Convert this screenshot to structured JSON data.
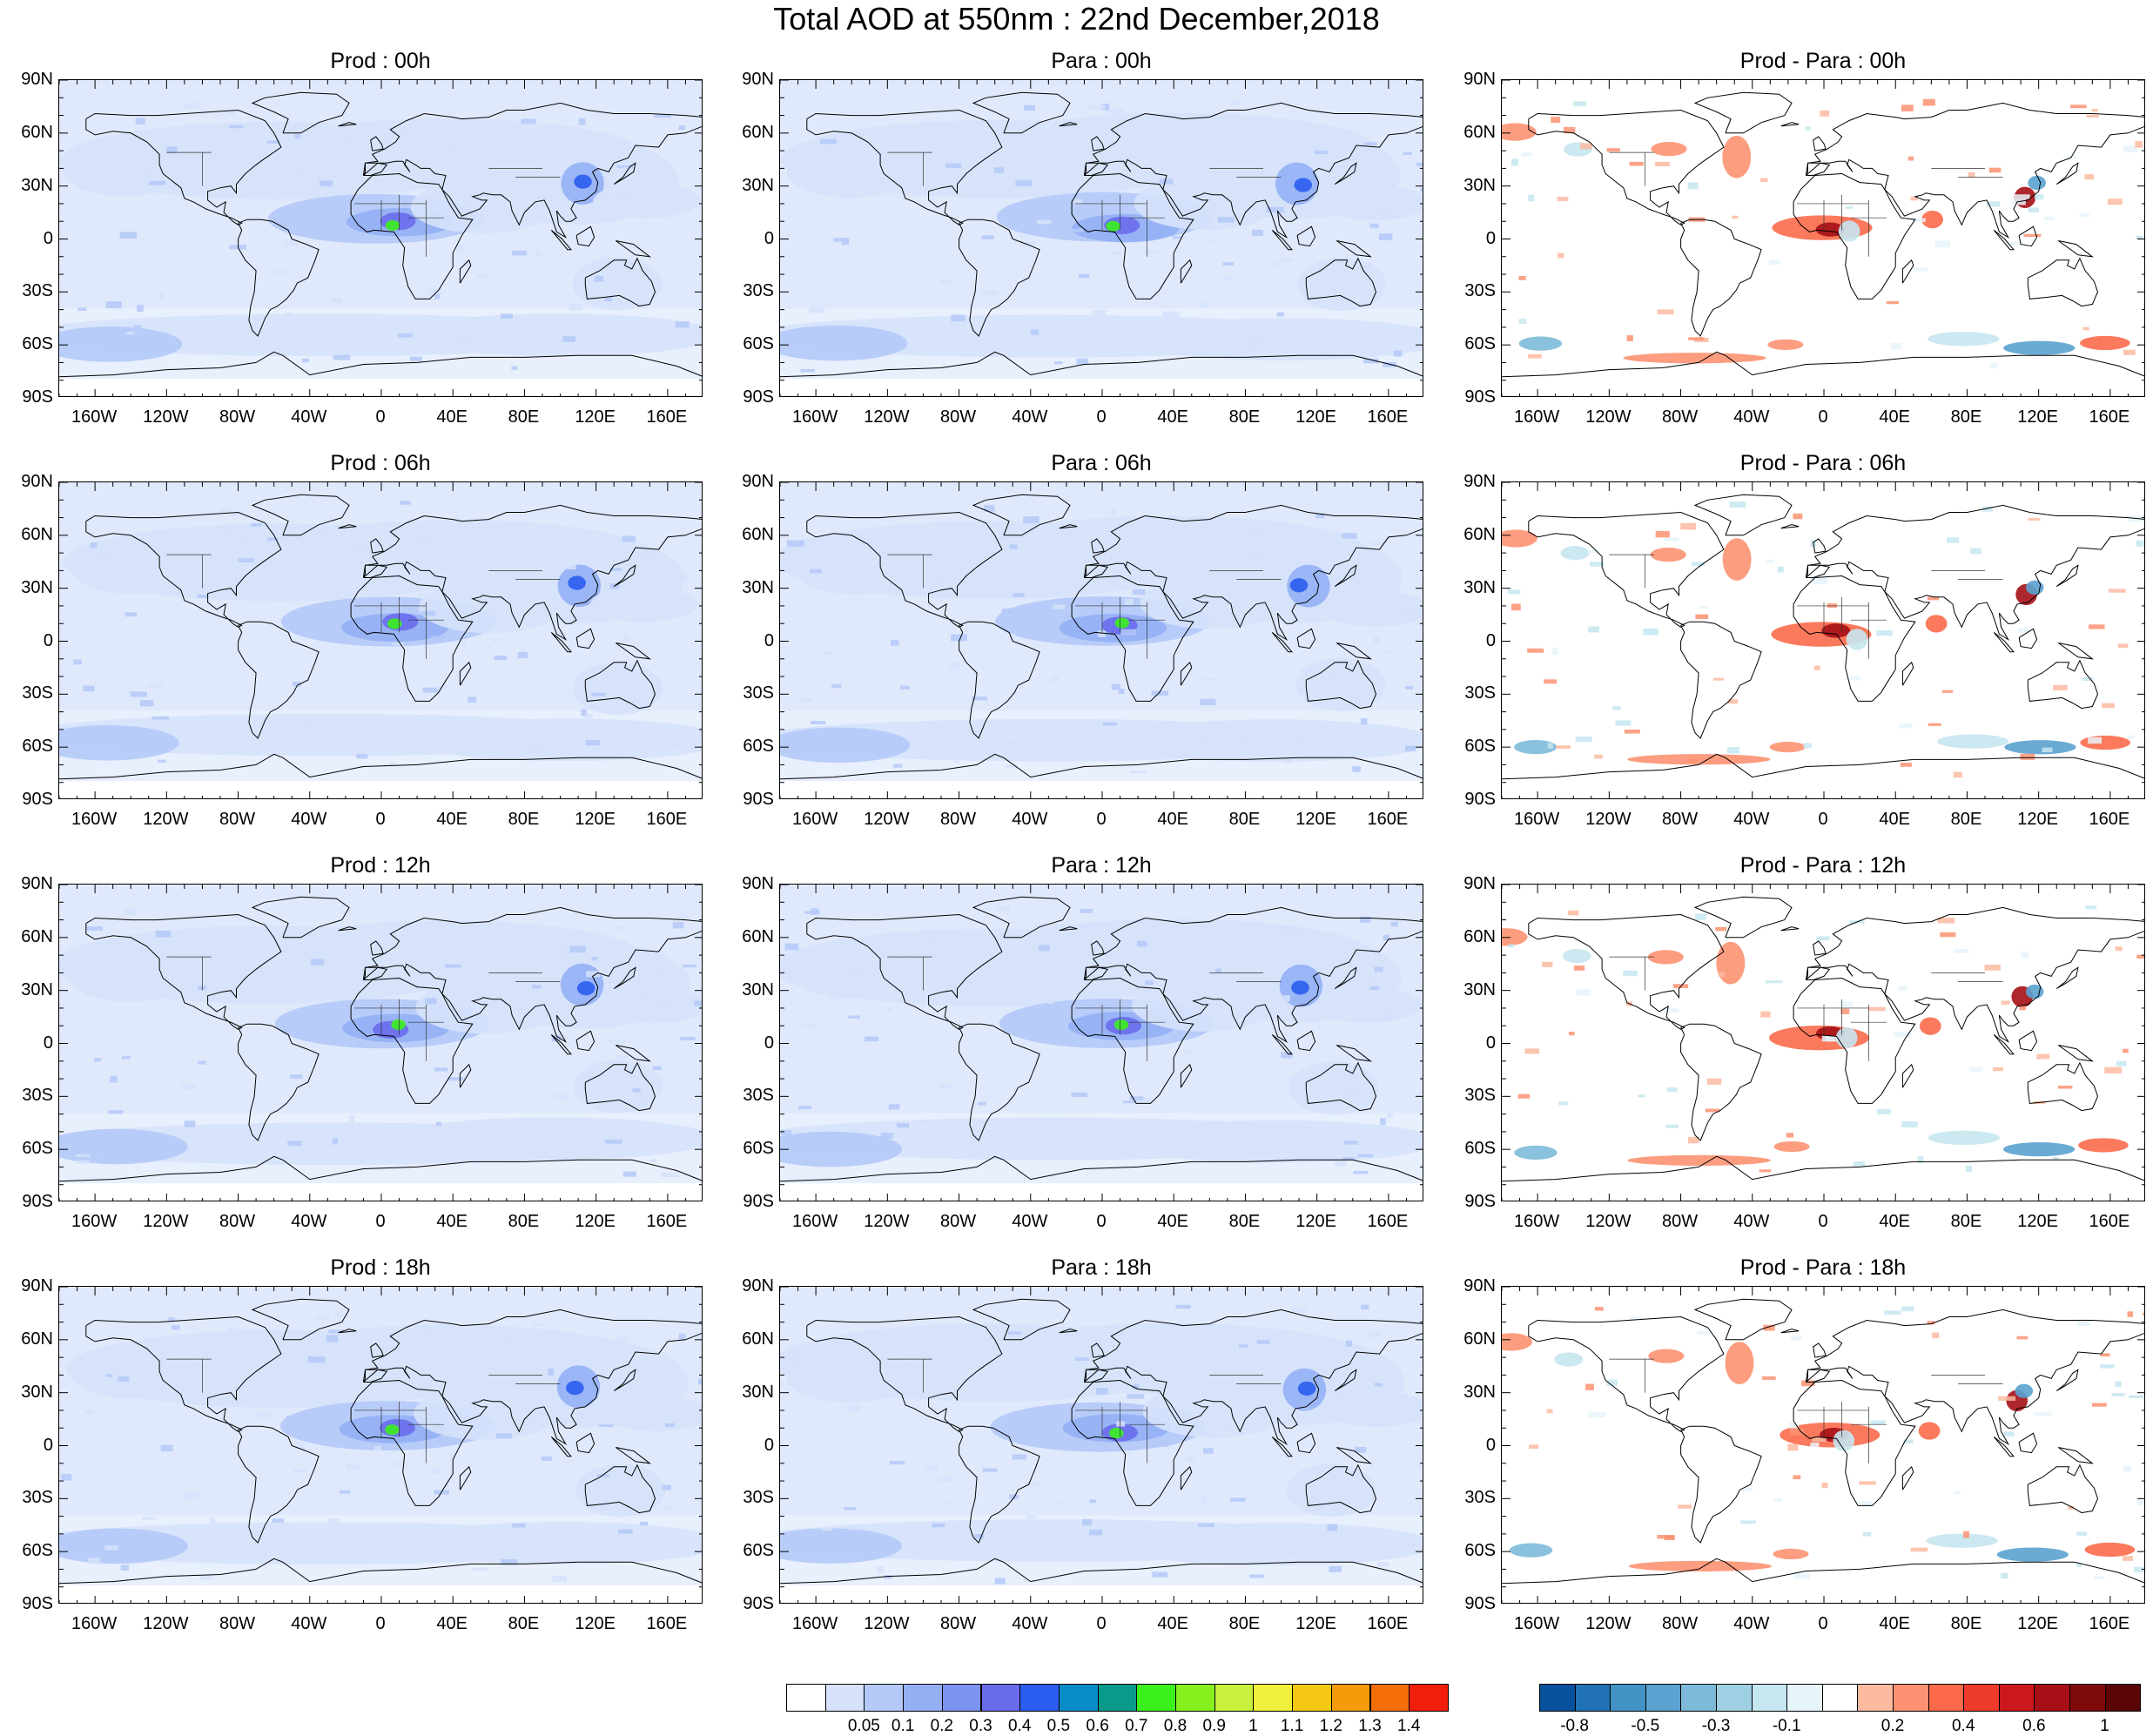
{
  "title": "Total AOD at 550nm : 22nd December,2018",
  "lat_ticks": [
    "90N",
    "60N",
    "30N",
    "0",
    "30S",
    "60S",
    "90S"
  ],
  "lon_ticks": [
    "160W",
    "120W",
    "80W",
    "40W",
    "0",
    "40E",
    "80E",
    "120E",
    "160E"
  ],
  "panels": [
    {
      "title": "Prod : 00h",
      "kind": "aod"
    },
    {
      "title": "Para : 00h",
      "kind": "aod"
    },
    {
      "title": "Prod - Para : 00h",
      "kind": "diff"
    },
    {
      "title": "Prod : 06h",
      "kind": "aod"
    },
    {
      "title": "Para : 06h",
      "kind": "aod"
    },
    {
      "title": "Prod - Para : 06h",
      "kind": "diff"
    },
    {
      "title": "Prod : 12h",
      "kind": "aod"
    },
    {
      "title": "Para : 12h",
      "kind": "aod"
    },
    {
      "title": "Prod - Para : 12h",
      "kind": "diff"
    },
    {
      "title": "Prod : 18h",
      "kind": "aod"
    },
    {
      "title": "Para : 18h",
      "kind": "aod"
    },
    {
      "title": "Prod - Para : 18h",
      "kind": "diff"
    }
  ],
  "aod_colorbar": {
    "labels": [
      "0.05",
      "0.1",
      "0.2",
      "0.3",
      "0.4",
      "0.5",
      "0.6",
      "0.7",
      "0.8",
      "0.9",
      "1",
      "1.1",
      "1.2",
      "1.3",
      "1.4"
    ],
    "colors": [
      "#ffffff",
      "#d6e2fb",
      "#b4c9f8",
      "#93b0f5",
      "#7c93f0",
      "#6a6cec",
      "#2b5df0",
      "#0a8cc8",
      "#099a8a",
      "#3cf01e",
      "#86f01e",
      "#c8f03c",
      "#f0f03c",
      "#f5c814",
      "#f59b0a",
      "#f56e0a",
      "#f01e0a"
    ]
  },
  "diff_colorbar": {
    "labels": [
      "-0.8",
      "-0.5",
      "-0.3",
      "-0.1",
      "0.2",
      "0.4",
      "0.6",
      "1"
    ],
    "colors": [
      "#08519c",
      "#2171b5",
      "#4292c6",
      "#5aa2cf",
      "#7dbad9",
      "#9ecfe3",
      "#c6e6f0",
      "#e6f5fa",
      "#ffffff",
      "#fcbba1",
      "#fc9272",
      "#fb6a4a",
      "#ef3b2c",
      "#cb181d",
      "#a50f15",
      "#7f0a0a",
      "#5a0606"
    ]
  }
}
